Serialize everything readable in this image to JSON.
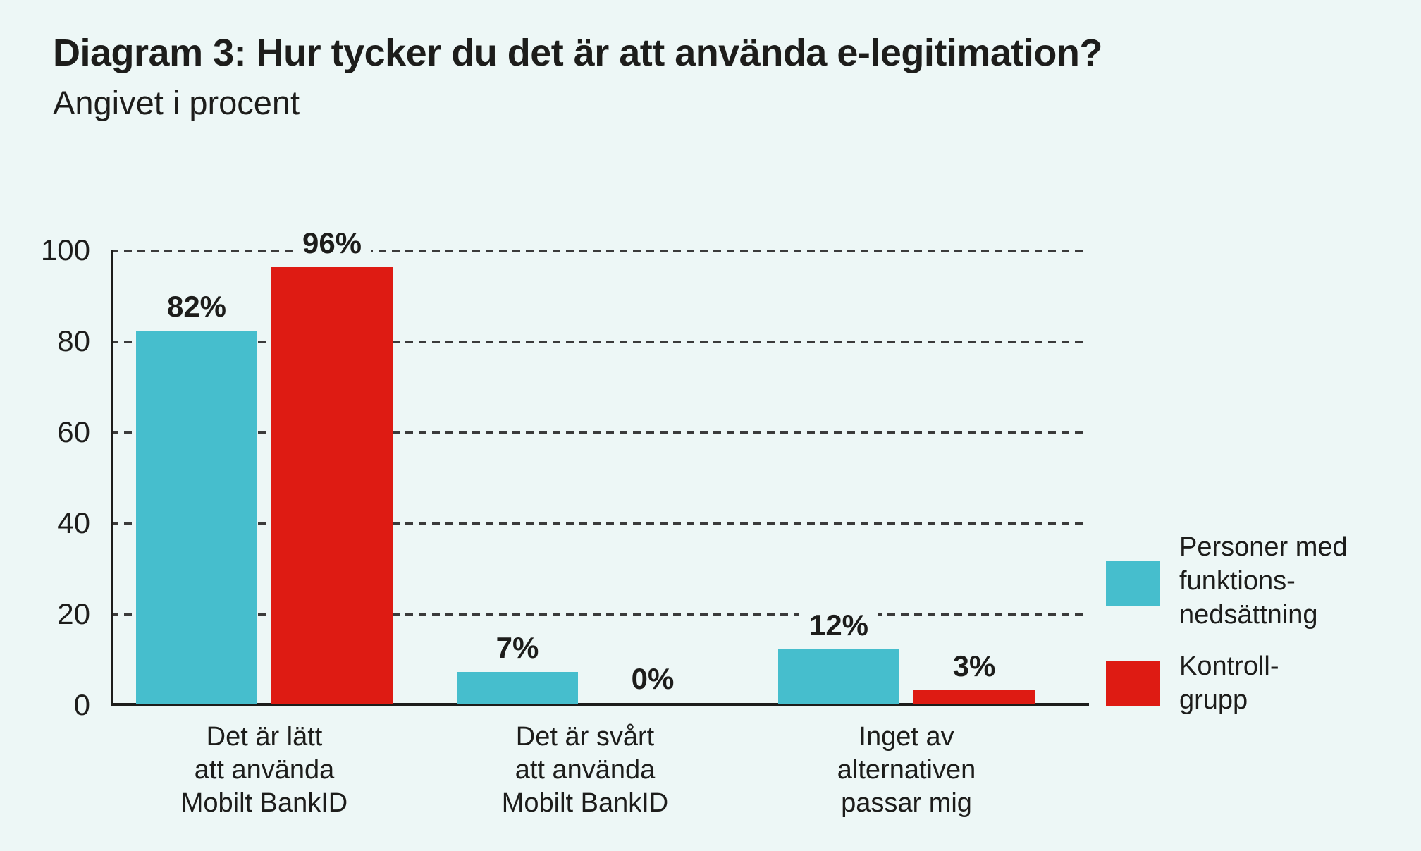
{
  "title": "Diagram 3: Hur tycker du det är att använda e-legitimation?",
  "subtitle": "Angivet i procent",
  "colors": {
    "background": "#EDF7F6",
    "series_teal": "#46BECD",
    "series_red": "#DE1B13",
    "text": "#1D1D1B",
    "grid": "#3B3B3B"
  },
  "chart_data": {
    "type": "bar",
    "title": "Diagram 3: Hur tycker du det är att använda e-legitimation?",
    "subtitle": "Angivet i procent",
    "unit": "percent",
    "categories": [
      [
        "Det är lätt",
        "att använda",
        "Mobilt BankID"
      ],
      [
        "Det är svårt",
        "att använda",
        "Mobilt BankID"
      ],
      [
        "Inget av",
        "alternativen",
        "passar mig"
      ]
    ],
    "series": [
      {
        "name": "Personer med funktionsnedsättning",
        "color_key": "series_teal",
        "values": [
          82,
          7,
          12
        ],
        "value_labels": [
          "82%",
          "7%",
          "12%"
        ]
      },
      {
        "name": "Kontrollgrupp",
        "color_key": "series_red",
        "values": [
          96,
          0,
          3
        ],
        "value_labels": [
          "96%",
          "0%",
          "3%"
        ]
      }
    ],
    "y_ticks": [
      100,
      80,
      60,
      40,
      20,
      0
    ],
    "ylim": [
      0,
      100
    ],
    "grid": "horizontal-dashed",
    "legend_position": "right"
  },
  "legend": {
    "items": [
      {
        "lines": [
          "Personer med",
          "funktions-",
          "nedsättning"
        ],
        "color_key": "series_teal"
      },
      {
        "lines": [
          "Kontroll-",
          "grupp"
        ],
        "color_key": "series_red"
      }
    ]
  }
}
